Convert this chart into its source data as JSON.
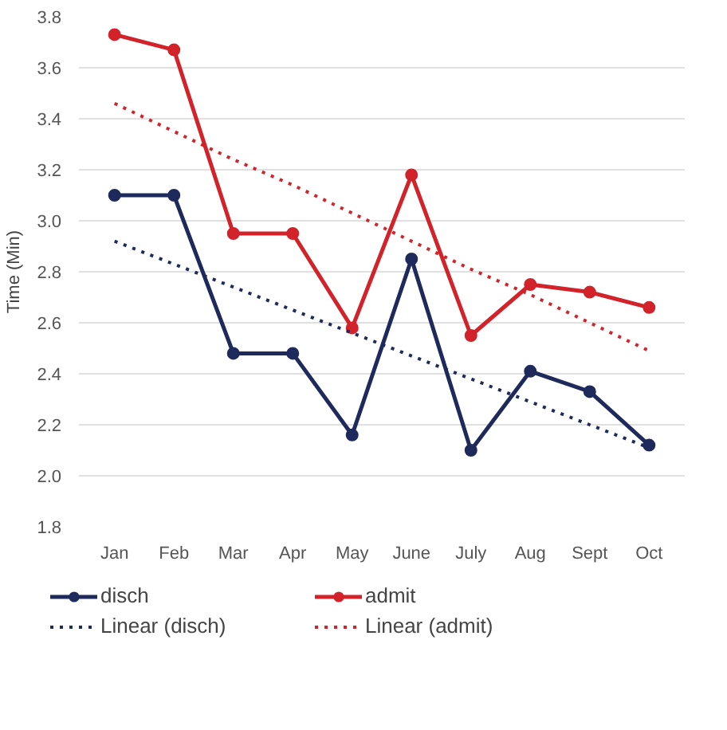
{
  "chart_data": {
    "type": "line",
    "ylabel": "Time (Min)",
    "categories": [
      "Jan",
      "Feb",
      "Mar",
      "Apr",
      "May",
      "June",
      "July",
      "Aug",
      "Sept",
      "Oct"
    ],
    "series": [
      {
        "name": "disch",
        "color": "#1f2a5c",
        "marker": "circle",
        "line_style": "solid",
        "values": [
          3.1,
          3.1,
          2.48,
          2.48,
          2.16,
          2.85,
          2.1,
          2.41,
          2.33,
          2.12
        ]
      },
      {
        "name": "admit",
        "color": "#d2232a",
        "marker": "circle",
        "line_style": "solid",
        "values": [
          3.73,
          3.67,
          2.95,
          2.95,
          2.58,
          3.18,
          2.55,
          2.75,
          2.72,
          2.66
        ]
      },
      {
        "name": "Linear (disch)",
        "color": "#1f2a5c",
        "marker": "none",
        "line_style": "dotted",
        "values": [
          2.92,
          2.83,
          2.74,
          2.65,
          2.56,
          2.47,
          2.38,
          2.29,
          2.2,
          2.11
        ]
      },
      {
        "name": "Linear (admit)",
        "color": "#d2232a",
        "marker": "none",
        "line_style": "dotted",
        "values": [
          3.46,
          3.35,
          3.24,
          3.14,
          3.03,
          2.92,
          2.81,
          2.71,
          2.6,
          2.49
        ]
      }
    ],
    "ylim": [
      1.8,
      3.8
    ],
    "yticks": [
      {
        "value": 1.8,
        "label": "1.8"
      },
      {
        "value": 2.0,
        "label": "2.0"
      },
      {
        "value": 2.2,
        "label": "2.2"
      },
      {
        "value": 2.4,
        "label": "2.4"
      },
      {
        "value": 2.6,
        "label": "2.6"
      },
      {
        "value": 2.8,
        "label": "2.8"
      },
      {
        "value": 3.0,
        "label": "3.0"
      },
      {
        "value": 3.2,
        "label": "3.2"
      },
      {
        "value": 3.4,
        "label": "3.4"
      },
      {
        "value": 3.6,
        "label": "3.6"
      },
      {
        "value": 3.8,
        "label": "3.8"
      }
    ],
    "grid": "y",
    "legend": "bottom"
  }
}
